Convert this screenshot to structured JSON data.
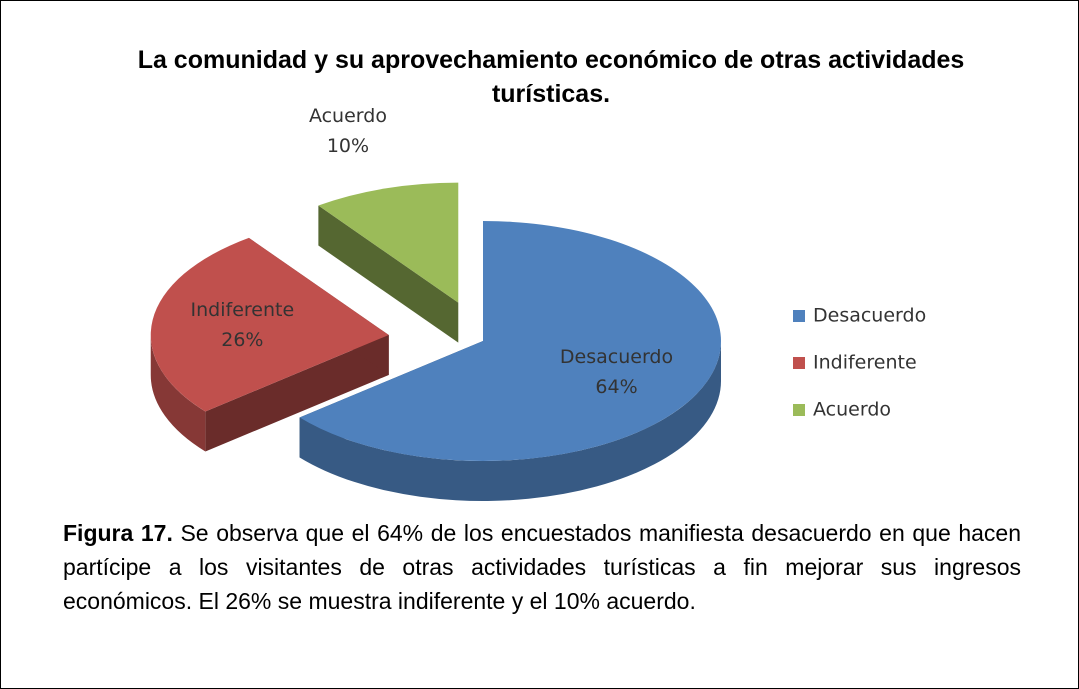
{
  "chart_data": {
    "type": "pie",
    "title": "La comunidad y su aprovechamiento económico de otras actividades turísticas.",
    "categories": [
      "Desacuerdo",
      "Indiferente",
      "Acuerdo"
    ],
    "values": [
      64,
      26,
      10
    ],
    "value_labels": [
      "64%",
      "26%",
      "10%"
    ],
    "colors": [
      "#4f81bd",
      "#c0504d",
      "#9bbb59"
    ],
    "legend": "right"
  },
  "caption": {
    "label": "Figura 17.",
    "text": "Se observa que el 64% de los encuestados manifiesta desacuerdo en que hacen partícipe a los visitantes de otras actividades turísticas a fin mejorar sus ingresos económicos. El 26% se muestra indiferente y el 10% acuerdo."
  }
}
